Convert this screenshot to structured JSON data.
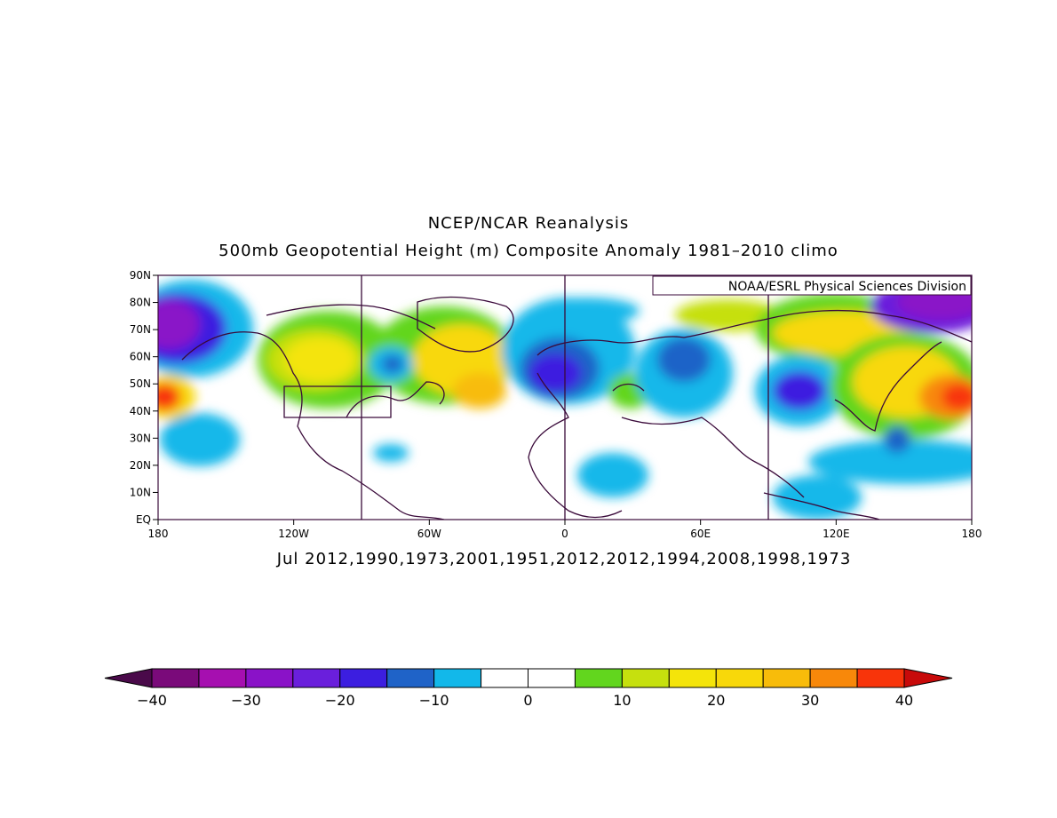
{
  "title_line1": "NCEP/NCAR Reanalysis",
  "title_line2": "500mb Geopotential Height (m) Composite Anomaly 1981–2010 climo",
  "credit": "NOAA/ESRL Physical Sciences Division",
  "subtitle": "Jul 2012,1990,1973,2001,1951,2012,2012,1994,2008,1998,1973",
  "lat_labels": [
    "90N",
    "80N",
    "70N",
    "60N",
    "50N",
    "40N",
    "30N",
    "20N",
    "10N",
    "EQ"
  ],
  "lon_labels": [
    "180",
    "120W",
    "60W",
    "0",
    "60E",
    "120E",
    "180"
  ],
  "colorbar": {
    "colors": [
      "#4a0a4a",
      "#7a0a7a",
      "#a60fb0",
      "#8a12c8",
      "#6a1fdc",
      "#3c1ee0",
      "#1f63c8",
      "#12b8ea",
      "#ffffff",
      "#ffffff",
      "#62d61e",
      "#c6e00e",
      "#f4e40a",
      "#f8d80a",
      "#f8bc0a",
      "#f8880a",
      "#f8340a",
      "#c80a0a"
    ],
    "labels": [
      "−40",
      "−30",
      "−20",
      "−10",
      "0",
      "10",
      "20",
      "30",
      "40"
    ]
  }
}
